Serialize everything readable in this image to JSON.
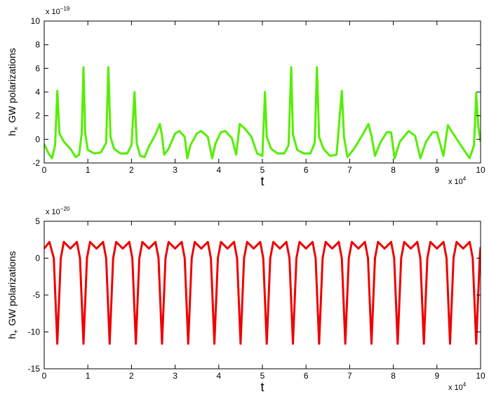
{
  "chart_data": [
    {
      "type": "line",
      "ylabel": {
        "base": "h",
        "sub": "×",
        "rest": "GW polarizations"
      },
      "xlabel": "t",
      "y_multiplier": {
        "base": "x 10",
        "exp": "−19"
      },
      "x_multiplier": {
        "base": "x 10",
        "exp": "4"
      },
      "color": "#55ee00",
      "xlim": [
        0,
        10
      ],
      "xticks": [
        0,
        1,
        2,
        3,
        4,
        5,
        6,
        7,
        8,
        9,
        10
      ],
      "ylim": [
        -2,
        10
      ],
      "yticks": [
        -2,
        0,
        2,
        4,
        6,
        8,
        10
      ],
      "x": [
        0,
        0.1,
        0.18,
        0.25,
        0.3,
        0.35,
        0.45,
        0.6,
        0.72,
        0.8,
        0.86,
        0.9,
        0.94,
        1.0,
        1.15,
        1.3,
        1.42,
        1.47,
        1.52,
        1.6,
        1.75,
        1.9,
        2.0,
        2.07,
        2.12,
        2.2,
        2.3,
        2.4,
        2.55,
        2.65,
        2.7,
        2.75,
        2.85,
        3.0,
        3.1,
        3.22,
        3.28,
        3.35,
        3.5,
        3.6,
        3.75,
        3.85,
        3.93,
        4.05,
        4.15,
        4.3,
        4.4,
        4.48,
        4.6,
        4.75,
        4.88,
        5.0,
        5.06,
        5.1,
        5.2,
        5.35,
        5.5,
        5.6,
        5.66,
        5.7,
        5.8,
        5.95,
        6.1,
        6.2,
        6.25,
        6.3,
        6.4,
        6.55,
        6.7,
        6.82,
        6.87,
        6.95,
        7.1,
        7.3,
        7.43,
        7.5,
        7.58,
        7.7,
        7.85,
        7.95,
        8.03,
        8.15,
        8.35,
        8.5,
        8.62,
        8.75,
        8.9,
        9.0,
        9.15,
        9.25,
        9.35,
        9.6,
        9.75,
        9.85,
        9.9,
        9.95,
        10.0
      ],
      "values": [
        -0.4,
        -1.2,
        -1.6,
        -0.5,
        4.1,
        0.5,
        -0.2,
        -0.8,
        -1.5,
        -1.3,
        0.5,
        6.1,
        0.5,
        -0.9,
        -1.2,
        -1.1,
        -0.3,
        6.1,
        0.2,
        -0.8,
        -1.2,
        -1.2,
        -0.5,
        4.0,
        -0.3,
        -1.4,
        -1.5,
        -0.6,
        0.4,
        1.3,
        0.3,
        -1.3,
        -0.8,
        0.5,
        0.7,
        0.2,
        -1.6,
        -0.5,
        0.5,
        0.7,
        0.2,
        -1.6,
        -0.3,
        0.6,
        0.7,
        0.1,
        -1.3,
        1.3,
        0.9,
        0.2,
        -1.2,
        -1.4,
        4.0,
        0.2,
        -0.8,
        -1.2,
        -1.2,
        -0.5,
        6.1,
        0.4,
        -0.9,
        -1.2,
        -1.2,
        -0.3,
        6.1,
        0.2,
        -0.8,
        -1.4,
        -1.3,
        4.1,
        0.2,
        -1.5,
        -0.8,
        0.4,
        1.3,
        0.3,
        -1.4,
        -0.3,
        0.6,
        0.6,
        -1.6,
        -0.2,
        0.7,
        0.3,
        -1.6,
        -0.2,
        0.6,
        0.6,
        -1.4,
        1.2,
        0.6,
        -0.8,
        -1.6,
        -0.5,
        3.9,
        1.0,
        -0.2
      ]
    },
    {
      "type": "line",
      "ylabel": {
        "base": "h",
        "sub": "+",
        "rest": "GW polarizations"
      },
      "xlabel": "t",
      "y_multiplier": {
        "base": "x 10",
        "exp": "−20"
      },
      "x_multiplier": {
        "base": "x 10",
        "exp": "4"
      },
      "color": "#ee0000",
      "xlim": [
        0,
        10
      ],
      "xticks": [
        0,
        1,
        2,
        3,
        4,
        5,
        6,
        7,
        8,
        9,
        10
      ],
      "ylim": [
        -15,
        5
      ],
      "yticks": [
        -15,
        -10,
        -5,
        0,
        5
      ],
      "x": [
        0,
        0.12,
        0.22,
        0.3,
        0.38,
        0.45,
        0.6,
        0.75,
        0.82,
        0.9,
        0.98,
        1.05,
        1.2,
        1.35,
        1.42,
        1.5,
        1.58,
        1.65,
        1.8,
        1.95,
        2.02,
        2.1,
        2.18,
        2.25,
        2.4,
        2.55,
        2.62,
        2.7,
        2.78,
        2.85,
        3.0,
        3.15,
        3.22,
        3.3,
        3.38,
        3.45,
        3.6,
        3.75,
        3.82,
        3.9,
        3.98,
        4.05,
        4.2,
        4.35,
        4.42,
        4.5,
        4.58,
        4.65,
        4.8,
        4.95,
        5.02,
        5.1,
        5.18,
        5.25,
        5.4,
        5.55,
        5.62,
        5.7,
        5.78,
        5.85,
        6.0,
        6.15,
        6.22,
        6.3,
        6.38,
        6.45,
        6.6,
        6.75,
        6.82,
        6.9,
        6.98,
        7.05,
        7.2,
        7.35,
        7.42,
        7.5,
        7.58,
        7.65,
        7.8,
        7.95,
        8.02,
        8.1,
        8.18,
        8.25,
        8.4,
        8.55,
        8.62,
        8.7,
        8.78,
        8.85,
        9.0,
        9.15,
        9.22,
        9.3,
        9.38,
        9.45,
        9.6,
        9.75,
        9.82,
        9.9,
        9.98,
        10
      ],
      "values": [
        1.3,
        2.2,
        0,
        -11.6,
        0,
        2.2,
        1.3,
        2.2,
        0,
        -11.6,
        0,
        2.2,
        1.3,
        2.2,
        0,
        -11.6,
        0,
        2.2,
        1.3,
        2.2,
        0,
        -11.6,
        0,
        2.2,
        1.3,
        2.2,
        0,
        -11.6,
        0,
        2.2,
        1.3,
        2.2,
        0,
        -11.6,
        0,
        2.2,
        1.3,
        2.2,
        0,
        -11.6,
        0,
        2.2,
        1.3,
        2.2,
        0,
        -11.6,
        0,
        2.2,
        1.3,
        2.2,
        0,
        -11.6,
        0,
        2.2,
        1.3,
        2.2,
        0,
        -11.6,
        0,
        2.2,
        1.3,
        2.2,
        0,
        -11.6,
        0,
        2.2,
        1.3,
        2.2,
        0,
        -11.6,
        0,
        2.2,
        1.3,
        2.2,
        0,
        -11.6,
        0,
        2.2,
        1.3,
        2.2,
        0,
        -11.6,
        0,
        2.2,
        1.3,
        2.2,
        0,
        -11.6,
        0,
        2.2,
        1.3,
        2.2,
        0,
        -11.6,
        0,
        2.2,
        1.3,
        2.2,
        0,
        -11.6,
        0,
        1.5
      ]
    }
  ]
}
